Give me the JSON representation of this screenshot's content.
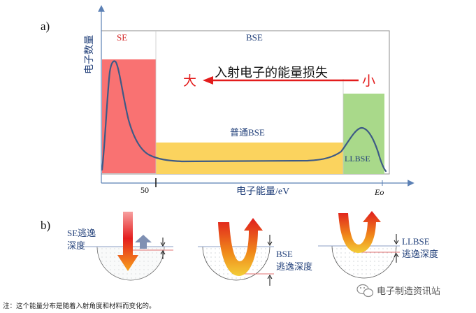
{
  "panel_a": {
    "label": "a)",
    "y_axis_label": "电子数量",
    "x_axis_label": "电子能量/eV",
    "x_tick_50": "50",
    "x_tick_e0": "Eo",
    "region_se": "SE",
    "region_bse": "BSE",
    "region_common_bse": "普通BSE",
    "region_llbse": "LLBSE",
    "energy_loss_title": "入射电子的能量损失",
    "energy_loss_large": "大",
    "energy_loss_small": "小"
  },
  "panel_b": {
    "label": "b)",
    "se_depth_label_1": "SE逃逸",
    "se_depth_label_2": "深度",
    "bse_depth_label_1": "BSE",
    "bse_depth_label_2": "逃逸深度",
    "llbse_depth_label_1": "LLBSE",
    "llbse_depth_label_2": "逃逸深度"
  },
  "footnote": "注：这个能量分布是随着入射角度和材料而变化的。",
  "watermark": "电子制造资讯站",
  "colors": {
    "se_region": "#f97272",
    "common_bse_region": "#fbd35e",
    "llbse_region": "#a9d98a",
    "curve": "#3d5a86",
    "axis": "#5b80b5",
    "arrow_red": "#e31c1c",
    "label_blue": "#22407a"
  }
}
